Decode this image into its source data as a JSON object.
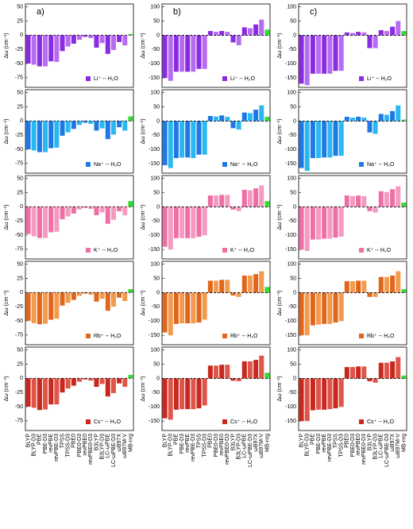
{
  "chart_data": {
    "type": "bar",
    "categories": [
      "BLYP",
      "BLYP-D3",
      "PBE",
      "PBE-D3",
      "revPBE",
      "revPBE-D3",
      "TPSS",
      "TPSS-D3",
      "PBE0",
      "PBE0-D3",
      "revPBE0",
      "revPBE0-D3",
      "B3LYP",
      "B3LYP-D3",
      "LC-ωPBE",
      "LC-ωPBE-D3",
      "ωB97X",
      "ωB97M-V",
      "MB-nrg"
    ],
    "ylabel": "Δω (cm⁻¹)",
    "highlight_color": "#33dd33",
    "columns": [
      {
        "label": "a)",
        "ylim": [
          -92,
          55
        ],
        "yticks": [
          -75,
          -50,
          -25,
          0,
          25,
          50
        ],
        "panels": [
          {
            "name": "Li⁺ -- H₂O",
            "color": "#8a2be2",
            "color_light": "#b56cf0",
            "values": [
              -50,
              -52,
              -55,
              -55,
              -46,
              -47,
              -28,
              -20,
              -15,
              -8,
              -3,
              -5,
              -22,
              -14,
              -33,
              -26,
              -12,
              -18,
              2
            ]
          },
          {
            "name": "Na⁺ -- H₂O",
            "color": "#1e78e6",
            "color_light": "#2ab8f0",
            "values": [
              -50,
              -52,
              -55,
              -55,
              -48,
              -47,
              -26,
              -20,
              -14,
              -7,
              -3,
              -5,
              -17,
              -13,
              -32,
              -24,
              -11,
              -17,
              8
            ]
          },
          {
            "name": "K⁺ -- H₂O",
            "color": "#ee6fa5",
            "color_light": "#f59ac0",
            "values": [
              -48,
              -52,
              -55,
              -55,
              -45,
              -44,
              -22,
              -17,
              -12,
              -5,
              -2,
              -4,
              -15,
              -10,
              -30,
              -23,
              -8,
              -15,
              10
            ]
          },
          {
            "name": "Rb⁺ -- H₂O",
            "color": "#e0661c",
            "color_light": "#f29a4d",
            "values": [
              -50,
              -54,
              -56,
              -55,
              -48,
              -46,
              -23,
              -18,
              -13,
              -6,
              -2,
              -4,
              -16,
              -11,
              -32,
              -25,
              -9,
              -15,
              6
            ]
          },
          {
            "name": "Cs⁺ -- H₂O",
            "color": "#c8281e",
            "color_light": "#e0554a",
            "values": [
              -50,
              -52,
              -56,
              -55,
              -46,
              -46,
              -25,
              -18,
              -13,
              -6,
              -2,
              -4,
              -15,
              -10,
              -32,
              -26,
              -9,
              -15,
              6
            ]
          }
        ]
      },
      {
        "label": "b)",
        "ylim": [
          -183,
          110
        ],
        "yticks": [
          -150,
          -100,
          -50,
          0,
          50,
          100
        ],
        "panels": [
          {
            "name": "Li⁺ -- H₂O",
            "color": "#8a2be2",
            "color_light": "#b56cf0",
            "values": [
              -150,
              -160,
              -128,
              -128,
              -128,
              -128,
              -118,
              -118,
              15,
              12,
              15,
              12,
              -25,
              -35,
              28,
              25,
              38,
              55,
              20
            ]
          },
          {
            "name": "Na⁺ -- H₂O",
            "color": "#1e78e6",
            "color_light": "#2ab8f0",
            "values": [
              -155,
              -165,
              -130,
              -128,
              -128,
              -130,
              -118,
              -118,
              18,
              16,
              20,
              15,
              -25,
              -30,
              30,
              28,
              40,
              55,
              15
            ]
          },
          {
            "name": "K⁺ -- H₂O",
            "color": "#ee6fa5",
            "color_light": "#f59ac0",
            "values": [
              -140,
              -150,
              -110,
              -110,
              -110,
              -110,
              -105,
              -100,
              40,
              40,
              42,
              42,
              -10,
              -15,
              60,
              58,
              65,
              75,
              20
            ]
          },
          {
            "name": "Rb⁺ -- H₂O",
            "color": "#e0661c",
            "color_light": "#f29a4d",
            "values": [
              -140,
              -150,
              -110,
              -108,
              -108,
              -108,
              -105,
              -95,
              42,
              42,
              45,
              45,
              -10,
              -15,
              60,
              60,
              65,
              75,
              20
            ]
          },
          {
            "name": "Cs⁺ -- H₂O",
            "color": "#c8281e",
            "color_light": "#e0554a",
            "values": [
              -140,
              -145,
              -110,
              -108,
              -108,
              -108,
              -105,
              -95,
              45,
              45,
              48,
              48,
              -8,
              -10,
              60,
              60,
              65,
              80,
              20
            ]
          }
        ]
      },
      {
        "label": "c)",
        "ylim": [
          -183,
          110
        ],
        "yticks": [
          -150,
          -100,
          -50,
          0,
          50,
          100
        ],
        "panels": [
          {
            "name": "Li⁺ -- H₂O",
            "color": "#8a2be2",
            "color_light": "#b56cf0",
            "values": [
              -170,
              -175,
              -135,
              -135,
              -135,
              -135,
              -125,
              -125,
              10,
              8,
              12,
              10,
              -45,
              -45,
              18,
              15,
              30,
              50,
              15
            ]
          },
          {
            "name": "Na⁺ -- H₂O",
            "color": "#1e78e6",
            "color_light": "#2ab8f0",
            "values": [
              -165,
              -175,
              -130,
              -130,
              -128,
              -128,
              -122,
              -122,
              15,
              12,
              15,
              12,
              -40,
              -45,
              25,
              22,
              35,
              55,
              5
            ]
          },
          {
            "name": "K⁺ -- H₂O",
            "color": "#ee6fa5",
            "color_light": "#f59ac0",
            "values": [
              -150,
              -155,
              -115,
              -115,
              -112,
              -112,
              -108,
              -105,
              40,
              38,
              40,
              38,
              -15,
              -20,
              55,
              52,
              62,
              72,
              15
            ]
          },
          {
            "name": "Rb⁺ -- H₂O",
            "color": "#e0661c",
            "color_light": "#f29a4d",
            "values": [
              -150,
              -150,
              -115,
              -112,
              -110,
              -110,
              -105,
              -100,
              40,
              40,
              42,
              42,
              -15,
              -15,
              55,
              55,
              60,
              75,
              12
            ]
          },
          {
            "name": "Cs⁺ -- H₂O",
            "color": "#c8281e",
            "color_light": "#e0554a",
            "values": [
              -150,
              -150,
              -112,
              -110,
              -110,
              -108,
              -105,
              -100,
              40,
              40,
              42,
              42,
              -10,
              -15,
              55,
              55,
              60,
              75,
              10
            ]
          }
        ]
      }
    ]
  }
}
